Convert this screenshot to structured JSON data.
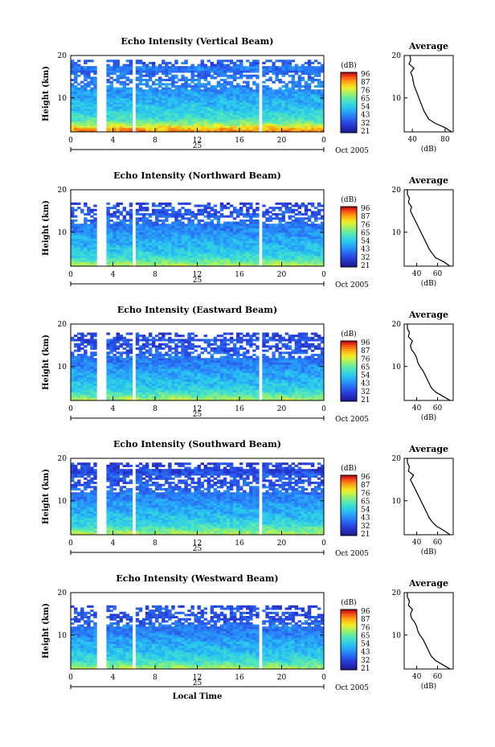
{
  "chart_data": [
    {
      "type": "heatmap",
      "title": "Echo Intensity (Vertical Beam)",
      "ylabel": "Height (km)",
      "xlabel": "",
      "ylim": [
        2,
        20
      ],
      "y_ticks": [
        "20",
        "10"
      ],
      "x_ticks": [
        "0",
        "4",
        "8",
        "12",
        "16",
        "20",
        "0"
      ],
      "day_label": "25",
      "date_label": "Oct 2005",
      "colorbar": {
        "unit": "(dB)",
        "labels": [
          "96",
          "87",
          "76",
          "65",
          "54",
          "43",
          "32",
          "21"
        ]
      },
      "data_gaps_hours": [
        [
          2.4,
          3.4
        ],
        [
          5.8,
          6.1
        ],
        [
          17.8,
          18.2
        ]
      ],
      "echo_top_km": 19,
      "strongest_layer_km": [
        2.5,
        5
      ],
      "average_profile": {
        "title": "Average",
        "xlabel": "(dB)",
        "x_ticks": [
          "40",
          "80"
        ],
        "y_ticks": [
          "20",
          "10"
        ],
        "xlim": [
          30,
          90
        ],
        "ylim": [
          2,
          20
        ],
        "height_km": [
          2,
          3,
          4,
          5,
          6,
          7,
          8,
          9,
          10,
          11,
          12,
          13,
          14,
          15,
          16,
          17,
          18,
          19,
          20
        ],
        "power_db": [
          88,
          80,
          68,
          60,
          57,
          54,
          52,
          50,
          48,
          46,
          44,
          42,
          41,
          40,
          38,
          42,
          36,
          38,
          37
        ]
      }
    },
    {
      "type": "heatmap",
      "title": "Echo Intensity (Northward Beam)",
      "ylabel": "Height (km)",
      "xlabel": "",
      "ylim": [
        2,
        20
      ],
      "y_ticks": [
        "20",
        "10"
      ],
      "x_ticks": [
        "0",
        "4",
        "8",
        "12",
        "16",
        "20",
        "0"
      ],
      "day_label": "25",
      "date_label": "Oct 2005",
      "colorbar": {
        "unit": "(dB)",
        "labels": [
          "96",
          "87",
          "76",
          "65",
          "54",
          "43",
          "32",
          "21"
        ]
      },
      "data_gaps_hours": [
        [
          2.4,
          3.4
        ],
        [
          5.8,
          6.1
        ],
        [
          17.8,
          18.2
        ]
      ],
      "echo_top_km": 17,
      "strongest_layer_km": [
        2,
        4
      ],
      "average_profile": {
        "title": "Average",
        "xlabel": "(dB)",
        "x_ticks": [
          "40",
          "60"
        ],
        "y_ticks": [
          "20",
          "10"
        ],
        "xlim": [
          28,
          75
        ],
        "ylim": [
          2,
          20
        ],
        "height_km": [
          2,
          3,
          4,
          5,
          6,
          7,
          8,
          9,
          10,
          11,
          12,
          13,
          14,
          15,
          16,
          17,
          18,
          19,
          20
        ],
        "power_db": [
          72,
          66,
          58,
          55,
          52,
          50,
          48,
          46,
          44,
          42,
          40,
          38,
          36,
          34,
          35,
          32,
          33,
          31,
          31
        ]
      }
    },
    {
      "type": "heatmap",
      "title": "Echo Intensity (Eastward Beam)",
      "ylabel": "Height (km)",
      "xlabel": "",
      "ylim": [
        2,
        20
      ],
      "y_ticks": [
        "20",
        "10"
      ],
      "x_ticks": [
        "0",
        "4",
        "8",
        "12",
        "16",
        "20",
        "0"
      ],
      "day_label": "25",
      "date_label": "Oct 2005",
      "colorbar": {
        "unit": "(dB)",
        "labels": [
          "96",
          "87",
          "76",
          "65",
          "54",
          "43",
          "32",
          "21"
        ]
      },
      "data_gaps_hours": [
        [
          2.4,
          3.4
        ],
        [
          5.8,
          6.1
        ],
        [
          17.8,
          18.2
        ]
      ],
      "echo_top_km": 18,
      "strongest_layer_km": [
        2,
        4
      ],
      "average_profile": {
        "title": "Average",
        "xlabel": "(dB)",
        "x_ticks": [
          "40",
          "60"
        ],
        "y_ticks": [
          "20",
          "10"
        ],
        "xlim": [
          28,
          75
        ],
        "ylim": [
          2,
          20
        ],
        "height_km": [
          2,
          3,
          4,
          5,
          6,
          7,
          8,
          9,
          10,
          11,
          12,
          13,
          14,
          15,
          16,
          17,
          18,
          19,
          20
        ],
        "power_db": [
          72,
          65,
          58,
          54,
          52,
          50,
          48,
          46,
          43,
          41,
          40,
          38,
          35,
          34,
          36,
          32,
          33,
          31,
          31
        ]
      }
    },
    {
      "type": "heatmap",
      "title": "Echo Intensity (Southward Beam)",
      "ylabel": "Height (km)",
      "xlabel": "",
      "ylim": [
        2,
        20
      ],
      "y_ticks": [
        "20",
        "10"
      ],
      "x_ticks": [
        "0",
        "4",
        "8",
        "12",
        "16",
        "20",
        "0"
      ],
      "day_label": "25",
      "date_label": "Oct 2005",
      "colorbar": {
        "unit": "(dB)",
        "labels": [
          "96",
          "87",
          "76",
          "65",
          "54",
          "43",
          "32",
          "21"
        ]
      },
      "data_gaps_hours": [
        [
          2.4,
          3.4
        ],
        [
          5.8,
          6.1
        ],
        [
          17.8,
          18.2
        ]
      ],
      "echo_top_km": 19,
      "strongest_layer_km": [
        2,
        4
      ],
      "average_profile": {
        "title": "Average",
        "xlabel": "(dB)",
        "x_ticks": [
          "40",
          "60"
        ],
        "y_ticks": [
          "20",
          "10"
        ],
        "xlim": [
          28,
          75
        ],
        "ylim": [
          2,
          20
        ],
        "height_km": [
          2,
          3,
          4,
          5,
          6,
          7,
          8,
          9,
          10,
          11,
          12,
          13,
          14,
          15,
          16,
          17,
          18,
          19,
          20
        ],
        "power_db": [
          72,
          66,
          59,
          55,
          52,
          50,
          48,
          46,
          44,
          42,
          40,
          38,
          36,
          34,
          37,
          32,
          33,
          31,
          31
        ]
      }
    },
    {
      "type": "heatmap",
      "title": "Echo Intensity (Westward Beam)",
      "ylabel": "Height (km)",
      "xlabel": "Local Time",
      "ylim": [
        2,
        20
      ],
      "y_ticks": [
        "20",
        "10"
      ],
      "x_ticks": [
        "0",
        "4",
        "8",
        "12",
        "16",
        "20",
        "0"
      ],
      "day_label": "25",
      "date_label": "Oct 2005",
      "colorbar": {
        "unit": "(dB)",
        "labels": [
          "96",
          "87",
          "76",
          "65",
          "54",
          "43",
          "32",
          "21"
        ]
      },
      "data_gaps_hours": [
        [
          2.4,
          3.4
        ],
        [
          5.8,
          6.1
        ],
        [
          17.8,
          18.2
        ]
      ],
      "echo_top_km": 17,
      "strongest_layer_km": [
        2,
        4
      ],
      "average_profile": {
        "title": "Average",
        "xlabel": "(dB)",
        "x_ticks": [
          "40",
          "60"
        ],
        "y_ticks": [
          "20",
          "10"
        ],
        "xlim": [
          28,
          75
        ],
        "ylim": [
          2,
          20
        ],
        "height_km": [
          2,
          3,
          4,
          5,
          6,
          7,
          8,
          9,
          10,
          11,
          12,
          13,
          14,
          15,
          16,
          17,
          18,
          19,
          20
        ],
        "power_db": [
          72,
          65,
          58,
          54,
          52,
          50,
          48,
          46,
          43,
          41,
          40,
          38,
          35,
          34,
          36,
          32,
          33,
          31,
          31
        ]
      }
    }
  ]
}
